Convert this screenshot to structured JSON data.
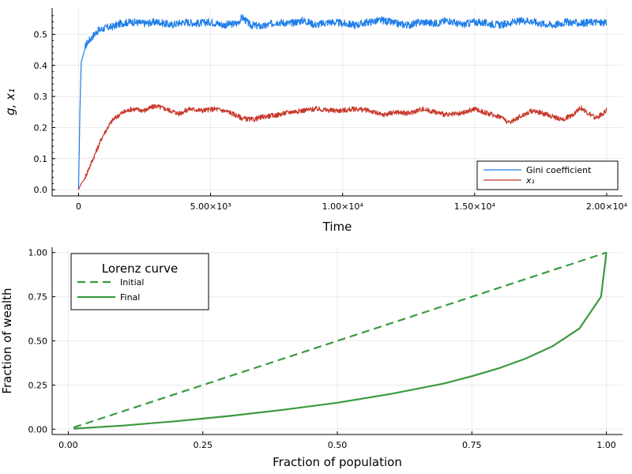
{
  "chart_data": [
    {
      "type": "line",
      "xlabel": "Time",
      "ylabel": "g, x₁",
      "xlim": [
        -1000,
        20600
      ],
      "ylim": [
        -0.02,
        0.585
      ],
      "xticks": [
        0,
        5000,
        10000,
        15000,
        20000
      ],
      "xtick_labels": [
        "0",
        "5.00×10³",
        "1.00×10⁴",
        "1.50×10⁴",
        "2.00×10⁴"
      ],
      "yticks": [
        0,
        0.1,
        0.2,
        0.3,
        0.4,
        0.5
      ],
      "ytick_labels": [
        "0.0",
        "0.1",
        "0.2",
        "0.3",
        "0.4",
        "0.5"
      ],
      "grid": true,
      "legend_position": "bottom-right",
      "series": [
        {
          "name": "Gini coefficient",
          "color": "#1f7ee8",
          "x": [
            0,
            50,
            100,
            200,
            300,
            500,
            700,
            1000,
            1300,
            1600,
            2000,
            2500,
            3000,
            3500,
            4000,
            4500,
            5000,
            5500,
            6000,
            6200,
            6500,
            7000,
            7500,
            8000,
            8500,
            9000,
            9500,
            10000,
            10500,
            11000,
            11500,
            12000,
            12500,
            13000,
            13500,
            14000,
            14500,
            15000,
            15500,
            16000,
            16500,
            17000,
            17500,
            18000,
            18500,
            19000,
            19500,
            20000
          ],
          "y": [
            0,
            0.25,
            0.41,
            0.44,
            0.47,
            0.49,
            0.51,
            0.52,
            0.525,
            0.535,
            0.54,
            0.535,
            0.54,
            0.53,
            0.54,
            0.535,
            0.54,
            0.53,
            0.535,
            0.555,
            0.53,
            0.525,
            0.54,
            0.535,
            0.545,
            0.53,
            0.54,
            0.535,
            0.53,
            0.54,
            0.545,
            0.535,
            0.53,
            0.54,
            0.535,
            0.545,
            0.53,
            0.54,
            0.535,
            0.53,
            0.54,
            0.545,
            0.535,
            0.53,
            0.54,
            0.535,
            0.54,
            0.535
          ]
        },
        {
          "name": "x₁",
          "color": "#c8392b",
          "x": [
            0,
            50,
            100,
            200,
            300,
            500,
            700,
            900,
            1100,
            1300,
            1600,
            2000,
            2500,
            2900,
            3300,
            3800,
            4200,
            4700,
            5200,
            5700,
            6200,
            6600,
            7000,
            7500,
            8000,
            8500,
            9000,
            9500,
            10000,
            10500,
            11000,
            11500,
            12000,
            12500,
            13000,
            13500,
            14000,
            14500,
            15000,
            15500,
            16000,
            16300,
            16700,
            17200,
            17800,
            18300,
            18700,
            19000,
            19300,
            19600,
            20000
          ],
          "y": [
            0,
            0.01,
            0.02,
            0.03,
            0.05,
            0.09,
            0.13,
            0.17,
            0.2,
            0.225,
            0.245,
            0.26,
            0.255,
            0.27,
            0.26,
            0.245,
            0.26,
            0.255,
            0.26,
            0.25,
            0.23,
            0.225,
            0.235,
            0.24,
            0.25,
            0.255,
            0.26,
            0.255,
            0.255,
            0.26,
            0.255,
            0.24,
            0.25,
            0.245,
            0.26,
            0.25,
            0.24,
            0.245,
            0.26,
            0.245,
            0.235,
            0.215,
            0.235,
            0.255,
            0.24,
            0.225,
            0.24,
            0.265,
            0.245,
            0.23,
            0.255
          ]
        }
      ]
    },
    {
      "type": "line",
      "xlabel": "Fraction of population",
      "ylabel": "Fraction of wealth",
      "xlim": [
        -0.03,
        1.03
      ],
      "ylim": [
        -0.03,
        1.03
      ],
      "xticks": [
        0,
        0.25,
        0.5,
        0.75,
        1.0
      ],
      "xtick_labels": [
        "0.00",
        "0.25",
        "0.50",
        "0.75",
        "1.00"
      ],
      "yticks": [
        0,
        0.25,
        0.5,
        0.75,
        1.0
      ],
      "ytick_labels": [
        "0.00",
        "0.25",
        "0.50",
        "0.75",
        "1.00"
      ],
      "grid": true,
      "legend_title": "Lorenz curve",
      "legend_position": "top-left",
      "series": [
        {
          "name": "Initial",
          "color": "#3a9a3f",
          "dash": "dashed",
          "x": [
            0.01,
            1.0
          ],
          "y": [
            0.01,
            1.0
          ]
        },
        {
          "name": "Final",
          "color": "#3a9a3f",
          "dash": "solid",
          "x": [
            0.01,
            0.1,
            0.2,
            0.3,
            0.4,
            0.5,
            0.6,
            0.7,
            0.75,
            0.8,
            0.85,
            0.9,
            0.95,
            0.99,
            1.0
          ],
          "y": [
            0.003,
            0.02,
            0.045,
            0.075,
            0.11,
            0.15,
            0.2,
            0.26,
            0.3,
            0.345,
            0.4,
            0.47,
            0.57,
            0.75,
            1.0
          ]
        }
      ]
    }
  ]
}
